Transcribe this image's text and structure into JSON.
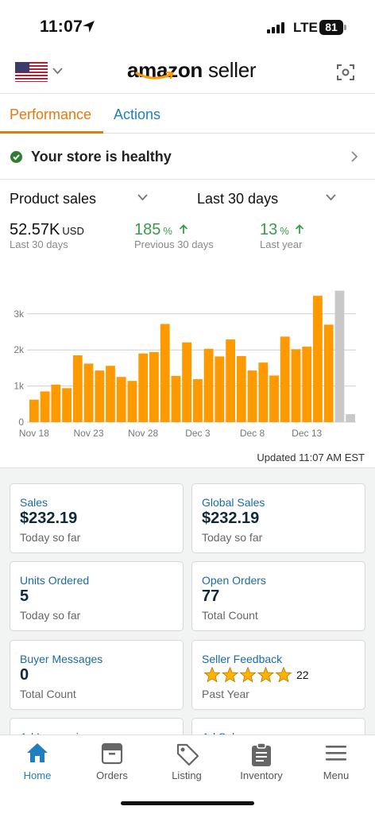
{
  "status_bar": {
    "time": "11:07",
    "network": "LTE",
    "battery": "81"
  },
  "header": {
    "brand_bold": "amazon",
    "brand_light": " seller"
  },
  "tabs": [
    {
      "label": "Performance"
    },
    {
      "label": "Actions"
    }
  ],
  "health": {
    "text": "Your store is healthy"
  },
  "selectors": {
    "metric": "Product sales",
    "range": "Last 30 days"
  },
  "metrics": [
    {
      "value": "52.57K",
      "unit": "USD",
      "caption": "Last 30 days"
    },
    {
      "value": "185",
      "unit": "%",
      "caption": "Previous 30 days"
    },
    {
      "value": "13",
      "unit": "%",
      "caption": "Last year"
    }
  ],
  "chart_data": {
    "type": "bar",
    "categories": [
      "Nov 18",
      "Nov 19",
      "Nov 20",
      "Nov 21",
      "Nov 22",
      "Nov 23",
      "Nov 24",
      "Nov 25",
      "Nov 26",
      "Nov 27",
      "Nov 28",
      "Nov 29",
      "Nov 30",
      "Dec 1",
      "Dec 2",
      "Dec 3",
      "Dec 4",
      "Dec 5",
      "Dec 6",
      "Dec 7",
      "Dec 8",
      "Dec 9",
      "Dec 10",
      "Dec 11",
      "Dec 12",
      "Dec 13",
      "Dec 14",
      "Dec 15",
      "Dec 16",
      "Dec 17"
    ],
    "x_tick_labels": [
      "Nov 18",
      "Nov 23",
      "Nov 28",
      "Dec 3",
      "Dec 8",
      "Dec 13"
    ],
    "y_tick_labels": [
      "0",
      "1k",
      "2k",
      "3k"
    ],
    "values": [
      620,
      850,
      1040,
      940,
      1850,
      1620,
      1430,
      1560,
      1250,
      1140,
      1900,
      1940,
      2720,
      1280,
      2210,
      1190,
      2030,
      1820,
      2290,
      1830,
      1430,
      1650,
      1290,
      2370,
      2020,
      2090,
      3500,
      2700,
      3640,
      220
    ],
    "highlight_colors": {
      "default": "#ff9900",
      "partial": "#c8c8c8"
    },
    "partial_indices": [
      28,
      29
    ],
    "ylim": [
      0,
      3700
    ],
    "grid": true
  },
  "updated": "Updated 11:07 AM EST",
  "cards": [
    {
      "label": "Sales",
      "value": "$232.19",
      "sub": "Today so far"
    },
    {
      "label": "Global Sales",
      "value": "$232.19",
      "sub": "Today so far"
    },
    {
      "label": "Units Ordered",
      "value": "5",
      "sub": "Today so far"
    },
    {
      "label": "Open Orders",
      "value": "77",
      "sub": "Total Count"
    },
    {
      "label": "Buyer Messages",
      "value": "0",
      "sub": "Total Count"
    },
    {
      "label": "Seller Feedback",
      "stars": 5,
      "count": "22",
      "sub": "Past Year"
    },
    {
      "label": "Ad Impressions"
    },
    {
      "label": "Ad Sales"
    }
  ],
  "nav": [
    {
      "label": "Home",
      "icon": "home-icon",
      "active": true
    },
    {
      "label": "Orders",
      "icon": "orders-icon"
    },
    {
      "label": "Listing",
      "icon": "tag-icon"
    },
    {
      "label": "Inventory",
      "icon": "clipboard-icon"
    },
    {
      "label": "Menu",
      "icon": "menu-icon"
    }
  ],
  "colors": {
    "accent": "#e47911",
    "link": "#1f7fbf",
    "bar": "#ff9900",
    "good": "#3a9b4a",
    "nav_active": "#1f7fbf"
  }
}
